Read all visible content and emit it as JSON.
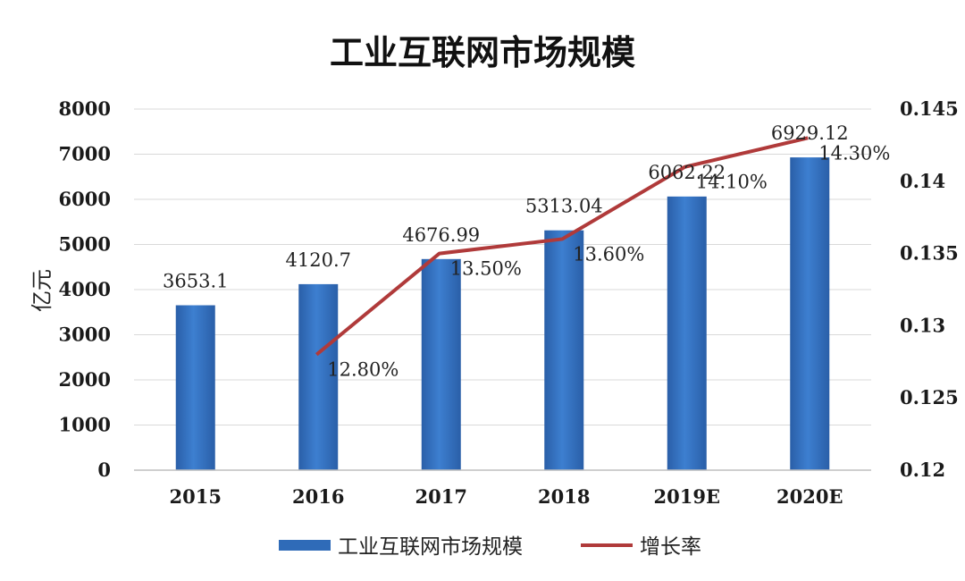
{
  "chart_data": {
    "type": "bar",
    "title": "工业互联网市场规模",
    "ylabel": "亿元",
    "categories": [
      "2015",
      "2016",
      "2017",
      "2018",
      "2019E",
      "2020E"
    ],
    "bar_series": {
      "name": "工业互联网市场规模",
      "values": [
        3653.1,
        4120.7,
        4676.99,
        5313.04,
        6062.22,
        6929.12
      ],
      "labels": [
        "3653.1",
        "4120.7",
        "4676.99",
        "5313.04",
        "6062.22",
        "6929.12"
      ],
      "color": "#2f6bb8"
    },
    "line_series": {
      "name": "增长率",
      "values": [
        null,
        0.128,
        0.135,
        0.136,
        0.141,
        0.143
      ],
      "labels": [
        "",
        "12.80%",
        "13.50%",
        "13.60%",
        "14.10%",
        "14.30%"
      ],
      "color": "#b03a3a"
    },
    "ylim": [
      0,
      8000
    ],
    "yticks": [
      "0",
      "1000",
      "2000",
      "3000",
      "4000",
      "5000",
      "6000",
      "7000",
      "8000"
    ],
    "y2lim": [
      0.12,
      0.145
    ],
    "y2ticks": [
      "0.12",
      "0.125",
      "0.13",
      "0.135",
      "0.14",
      "0.145"
    ],
    "legend_position": "bottom",
    "grid": true
  }
}
